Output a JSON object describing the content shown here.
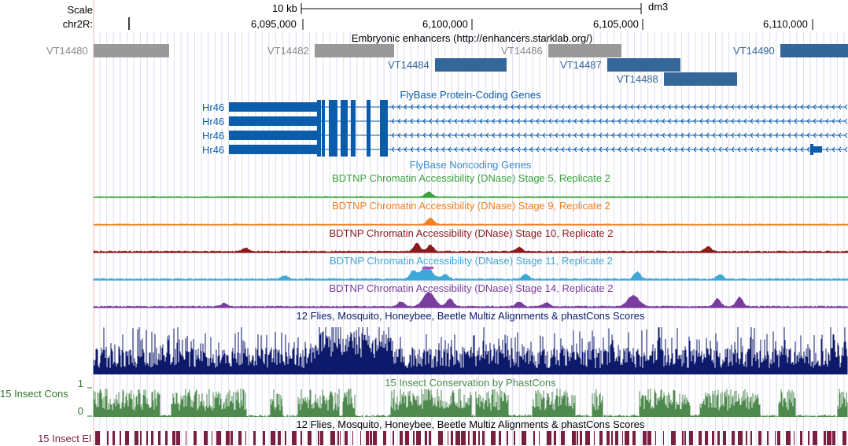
{
  "ruler": {
    "scale_label": "Scale",
    "scale_value": "10 kb",
    "assembly": "dm3",
    "chrom_label": "chr2R:",
    "ticks": [
      "6,095,000",
      "6,100,000",
      "6,105,000",
      "6,110,000"
    ]
  },
  "tracks": {
    "enhancers": {
      "title": "Embryonic enhancers (http://enhancers.starklab.org/)",
      "items": [
        {
          "name": "VT14480",
          "color": "#999999"
        },
        {
          "name": "VT14482",
          "color": "#999999"
        },
        {
          "name": "VT14484",
          "color": "#336699"
        },
        {
          "name": "VT14486",
          "color": "#999999"
        },
        {
          "name": "VT14487",
          "color": "#336699"
        },
        {
          "name": "VT14488",
          "color": "#336699"
        },
        {
          "name": "VT14490",
          "color": "#336699"
        }
      ]
    },
    "coding_genes": {
      "title": "FlyBase Protein-Coding Genes",
      "color": "#0b5dab",
      "transcripts": [
        "Hr46",
        "Hr46",
        "Hr46",
        "Hr46"
      ]
    },
    "noncoding_genes": {
      "title": "FlyBase Noncoding Genes",
      "color": "#3c8ccf"
    },
    "dnase": [
      {
        "title": "BDTNP Chromatin Accessibility (DNase) Stage 5, Replicate 2",
        "color": "#3aa33a"
      },
      {
        "title": "BDTNP Chromatin Accessibility (DNase) Stage 9, Replicate 2",
        "color": "#f07f1d"
      },
      {
        "title": "BDTNP Chromatin Accessibility (DNase) Stage 10, Replicate 2",
        "color": "#8b1a1a"
      },
      {
        "title": "BDTNP Chromatin Accessibility (DNase) Stage 11, Replicate 2",
        "color": "#40a8d8"
      },
      {
        "title": "BDTNP Chromatin Accessibility (DNase) Stage 14, Replicate 2",
        "color": "#7a3d9e"
      }
    ],
    "multiz": {
      "title": "12 Flies, Mosquito, Honeybee, Beetle Multiz Alignments & phastCons Scores",
      "color": "#0d1a6b"
    },
    "phastcons": {
      "title": "15 Insect Conservation by PhastCons",
      "side_label": "15 Insect Cons",
      "y_max": "1",
      "y_min": "0",
      "color": "#4e8a4e"
    },
    "elements": {
      "title": "12 Flies, Mosquito, Honeybee, Beetle Multiz Alignments & phastCons Scores",
      "side_label": "15 Insect El",
      "color": "#7a1f3d"
    }
  }
}
